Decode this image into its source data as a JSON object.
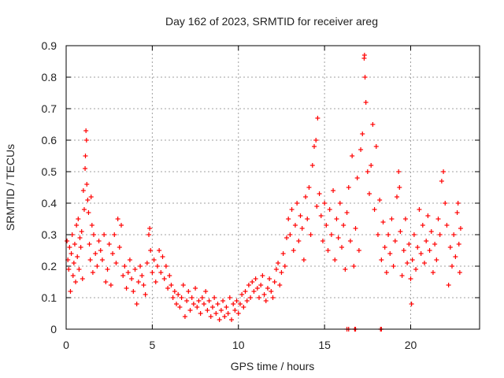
{
  "chart_data": {
    "type": "scatter",
    "title": "Day 162 of 2023, SRMTID for receiver areg",
    "xlabel": "GPS time / hours",
    "ylabel": "SRMTID / TECUs",
    "xlim": [
      0,
      24
    ],
    "ylim": [
      0,
      0.9
    ],
    "xticks": [
      0,
      5,
      10,
      15,
      20
    ],
    "yticks": [
      0,
      0.1,
      0.2,
      0.3,
      0.4,
      0.5,
      0.6,
      0.7,
      0.8,
      0.9
    ],
    "ytick_labels": [
      "0",
      "0.1",
      "0.2",
      "0.3",
      "0.4",
      "0.5",
      "0.6",
      "0.7",
      "0.8",
      "0.9"
    ],
    "xtick_labels": [
      "0",
      "5",
      "10",
      "15",
      "20"
    ],
    "grid": true,
    "marker": "plus",
    "color": "#ff0000",
    "series": [
      {
        "name": "SRMTID",
        "points": [
          [
            0.05,
            0.28
          ],
          [
            0.1,
            0.22
          ],
          [
            0.15,
            0.19
          ],
          [
            0.2,
            0.26
          ],
          [
            0.25,
            0.12
          ],
          [
            0.3,
            0.24
          ],
          [
            0.35,
            0.3
          ],
          [
            0.4,
            0.17
          ],
          [
            0.45,
            0.21
          ],
          [
            0.5,
            0.27
          ],
          [
            0.55,
            0.15
          ],
          [
            0.6,
            0.33
          ],
          [
            0.65,
            0.23
          ],
          [
            0.7,
            0.35
          ],
          [
            0.75,
            0.19
          ],
          [
            0.8,
            0.29
          ],
          [
            0.85,
            0.26
          ],
          [
            0.9,
            0.31
          ],
          [
            0.95,
            0.16
          ],
          [
            1.0,
            0.44
          ],
          [
            1.05,
            0.38
          ],
          [
            1.1,
            0.51
          ],
          [
            1.12,
            0.55
          ],
          [
            1.15,
            0.63
          ],
          [
            1.18,
            0.6
          ],
          [
            1.2,
            0.46
          ],
          [
            1.25,
            0.41
          ],
          [
            1.3,
            0.37
          ],
          [
            1.35,
            0.27
          ],
          [
            1.4,
            0.22
          ],
          [
            1.45,
            0.42
          ],
          [
            1.5,
            0.33
          ],
          [
            1.55,
            0.18
          ],
          [
            1.6,
            0.3
          ],
          [
            1.7,
            0.24
          ],
          [
            1.8,
            0.2
          ],
          [
            1.9,
            0.28
          ],
          [
            2.0,
            0.25
          ],
          [
            2.1,
            0.22
          ],
          [
            2.2,
            0.3
          ],
          [
            2.3,
            0.15
          ],
          [
            2.4,
            0.19
          ],
          [
            2.5,
            0.27
          ],
          [
            2.6,
            0.14
          ],
          [
            2.7,
            0.24
          ],
          [
            2.8,
            0.3
          ],
          [
            2.9,
            0.21
          ],
          [
            3.0,
            0.35
          ],
          [
            3.1,
            0.26
          ],
          [
            3.2,
            0.33
          ],
          [
            3.3,
            0.17
          ],
          [
            3.4,
            0.2
          ],
          [
            3.5,
            0.13
          ],
          [
            3.6,
            0.18
          ],
          [
            3.7,
            0.22
          ],
          [
            3.8,
            0.16
          ],
          [
            3.9,
            0.12
          ],
          [
            4.0,
            0.19
          ],
          [
            4.1,
            0.08
          ],
          [
            4.2,
            0.15
          ],
          [
            4.3,
            0.2
          ],
          [
            4.4,
            0.17
          ],
          [
            4.5,
            0.14
          ],
          [
            4.6,
            0.11
          ],
          [
            4.7,
            0.21
          ],
          [
            4.8,
            0.3
          ],
          [
            4.85,
            0.32
          ],
          [
            4.9,
            0.25
          ],
          [
            5.0,
            0.18
          ],
          [
            5.1,
            0.22
          ],
          [
            5.2,
            0.15
          ],
          [
            5.3,
            0.2
          ],
          [
            5.4,
            0.25
          ],
          [
            5.5,
            0.18
          ],
          [
            5.6,
            0.23
          ],
          [
            5.7,
            0.16
          ],
          [
            5.8,
            0.2
          ],
          [
            5.9,
            0.13
          ],
          [
            6.0,
            0.17
          ],
          [
            6.1,
            0.14
          ],
          [
            6.2,
            0.1
          ],
          [
            6.3,
            0.12
          ],
          [
            6.4,
            0.08
          ],
          [
            6.5,
            0.11
          ],
          [
            6.6,
            0.07
          ],
          [
            6.7,
            0.1
          ],
          [
            6.8,
            0.14
          ],
          [
            6.9,
            0.04
          ],
          [
            7.0,
            0.09
          ],
          [
            7.1,
            0.12
          ],
          [
            7.2,
            0.06
          ],
          [
            7.3,
            0.1
          ],
          [
            7.4,
            0.08
          ],
          [
            7.5,
            0.13
          ],
          [
            7.6,
            0.07
          ],
          [
            7.7,
            0.09
          ],
          [
            7.8,
            0.05
          ],
          [
            7.9,
            0.1
          ],
          [
            8.0,
            0.08
          ],
          [
            8.1,
            0.12
          ],
          [
            8.2,
            0.06
          ],
          [
            8.3,
            0.09
          ],
          [
            8.4,
            0.04
          ],
          [
            8.5,
            0.07
          ],
          [
            8.6,
            0.1
          ],
          [
            8.7,
            0.05
          ],
          [
            8.8,
            0.08
          ],
          [
            8.9,
            0.03
          ],
          [
            9.0,
            0.06
          ],
          [
            9.1,
            0.09
          ],
          [
            9.2,
            0.04
          ],
          [
            9.3,
            0.07
          ],
          [
            9.4,
            0.05
          ],
          [
            9.5,
            0.1
          ],
          [
            9.6,
            0.03
          ],
          [
            9.7,
            0.08
          ],
          [
            9.8,
            0.06
          ],
          [
            9.9,
            0.09
          ],
          [
            10.0,
            0.05
          ],
          [
            10.1,
            0.08
          ],
          [
            10.2,
            0.11
          ],
          [
            10.3,
            0.07
          ],
          [
            10.4,
            0.12
          ],
          [
            10.5,
            0.09
          ],
          [
            10.6,
            0.14
          ],
          [
            10.7,
            0.1
          ],
          [
            10.8,
            0.15
          ],
          [
            10.9,
            0.12
          ],
          [
            11.0,
            0.16
          ],
          [
            11.1,
            0.13
          ],
          [
            11.2,
            0.1
          ],
          [
            11.3,
            0.14
          ],
          [
            11.4,
            0.17
          ],
          [
            11.5,
            0.11
          ],
          [
            11.6,
            0.09
          ],
          [
            11.7,
            0.13
          ],
          [
            11.8,
            0.16
          ],
          [
            11.9,
            0.12
          ],
          [
            12.0,
            0.1
          ],
          [
            12.1,
            0.15
          ],
          [
            12.2,
            0.19
          ],
          [
            12.3,
            0.21
          ],
          [
            12.4,
            0.14
          ],
          [
            12.5,
            0.18
          ],
          [
            12.6,
            0.24
          ],
          [
            12.7,
            0.2
          ],
          [
            12.8,
            0.29
          ],
          [
            12.9,
            0.35
          ],
          [
            13.0,
            0.3
          ],
          [
            13.1,
            0.38
          ],
          [
            13.2,
            0.25
          ],
          [
            13.3,
            0.33
          ],
          [
            13.4,
            0.4
          ],
          [
            13.5,
            0.28
          ],
          [
            13.6,
            0.36
          ],
          [
            13.7,
            0.32
          ],
          [
            13.8,
            0.22
          ],
          [
            13.9,
            0.42
          ],
          [
            14.0,
            0.35
          ],
          [
            14.1,
            0.45
          ],
          [
            14.2,
            0.3
          ],
          [
            14.3,
            0.52
          ],
          [
            14.4,
            0.58
          ],
          [
            14.5,
            0.6
          ],
          [
            14.55,
            0.39
          ],
          [
            14.6,
            0.67
          ],
          [
            14.7,
            0.43
          ],
          [
            14.8,
            0.36
          ],
          [
            14.9,
            0.28
          ],
          [
            15.0,
            0.4
          ],
          [
            15.1,
            0.33
          ],
          [
            15.2,
            0.25
          ],
          [
            15.3,
            0.38
          ],
          [
            15.4,
            0.3
          ],
          [
            15.5,
            0.44
          ],
          [
            15.6,
            0.22
          ],
          [
            15.7,
            0.35
          ],
          [
            15.8,
            0.29
          ],
          [
            15.9,
            0.4
          ],
          [
            16.0,
            0.26
          ],
          [
            16.1,
            0.33
          ],
          [
            16.2,
            0.19
          ],
          [
            16.3,
            0.37
          ],
          [
            16.4,
            0.45
          ],
          [
            16.5,
            0.28
          ],
          [
            16.6,
            0.55
          ],
          [
            16.7,
            0.2
          ],
          [
            16.8,
            0.32
          ],
          [
            16.9,
            0.48
          ],
          [
            17.0,
            0.25
          ],
          [
            17.1,
            0.57
          ],
          [
            17.2,
            0.62
          ],
          [
            17.3,
            0.86
          ],
          [
            17.32,
            0.87
          ],
          [
            17.35,
            0.8
          ],
          [
            17.4,
            0.72
          ],
          [
            17.5,
            0.5
          ],
          [
            17.6,
            0.43
          ],
          [
            17.7,
            0.52
          ],
          [
            17.8,
            0.65
          ],
          [
            17.9,
            0.38
          ],
          [
            18.0,
            0.58
          ],
          [
            18.1,
            0.3
          ],
          [
            18.2,
            0.41
          ],
          [
            18.3,
            0.22
          ],
          [
            18.4,
            0.34
          ],
          [
            18.5,
            0.26
          ],
          [
            18.6,
            0.18
          ],
          [
            18.7,
            0.3
          ],
          [
            18.8,
            0.24
          ],
          [
            18.9,
            0.35
          ],
          [
            19.0,
            0.2
          ],
          [
            19.1,
            0.28
          ],
          [
            19.2,
            0.42
          ],
          [
            19.3,
            0.5
          ],
          [
            19.35,
            0.45
          ],
          [
            19.4,
            0.31
          ],
          [
            19.5,
            0.17
          ],
          [
            19.6,
            0.25
          ],
          [
            19.7,
            0.35
          ],
          [
            19.8,
            0.21
          ],
          [
            19.9,
            0.27
          ],
          [
            20.0,
            0.16
          ],
          [
            20.05,
            0.08
          ],
          [
            20.1,
            0.22
          ],
          [
            20.2,
            0.3
          ],
          [
            20.3,
            0.19
          ],
          [
            20.4,
            0.26
          ],
          [
            20.5,
            0.38
          ],
          [
            20.6,
            0.24
          ],
          [
            20.7,
            0.33
          ],
          [
            20.8,
            0.21
          ],
          [
            20.9,
            0.28
          ],
          [
            21.0,
            0.36
          ],
          [
            21.1,
            0.25
          ],
          [
            21.2,
            0.31
          ],
          [
            21.3,
            0.18
          ],
          [
            21.4,
            0.27
          ],
          [
            21.5,
            0.22
          ],
          [
            21.6,
            0.35
          ],
          [
            21.7,
            0.3
          ],
          [
            21.8,
            0.47
          ],
          [
            21.9,
            0.5
          ],
          [
            22.0,
            0.4
          ],
          [
            22.1,
            0.33
          ],
          [
            22.2,
            0.14
          ],
          [
            22.3,
            0.26
          ],
          [
            22.4,
            0.2
          ],
          [
            22.5,
            0.3
          ],
          [
            22.6,
            0.23
          ],
          [
            22.7,
            0.37
          ],
          [
            22.75,
            0.4
          ],
          [
            22.8,
            0.27
          ],
          [
            22.85,
            0.18
          ],
          [
            22.9,
            0.32
          ],
          [
            16.3,
            0.0
          ],
          [
            16.4,
            0.0
          ],
          [
            16.75,
            0.0
          ],
          [
            16.8,
            0.0
          ],
          [
            18.25,
            0.0
          ],
          [
            18.3,
            0.0
          ]
        ]
      }
    ]
  }
}
